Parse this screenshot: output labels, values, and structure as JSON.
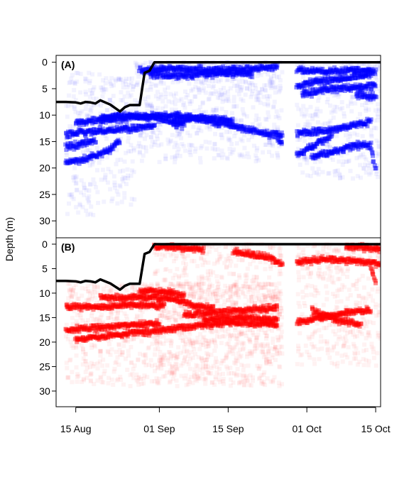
{
  "chart_data": {
    "type": "scatter",
    "ylabel": "Depth (m)",
    "x_axis": {
      "type": "date",
      "range": [
        "2013-08-11",
        "2013-10-16"
      ],
      "ticks": [
        {
          "date": "2013-08-15",
          "label": "15 Aug"
        },
        {
          "date": "2013-09-01",
          "label": "01 Sep"
        },
        {
          "date": "2013-09-15",
          "label": "15 Sep"
        },
        {
          "date": "2013-10-01",
          "label": "01 Oct"
        },
        {
          "date": "2013-10-15",
          "label": "15 Oct"
        }
      ]
    },
    "panels": [
      {
        "label": "(A)",
        "color": "#0000ff",
        "y_axis": {
          "range": [
            -1.3,
            33.2
          ],
          "inverted": true,
          "ticks": [
            0,
            5,
            10,
            15,
            20,
            25,
            30
          ]
        },
        "depth_line": {
          "color": "#000000",
          "points": [
            [
              "2013-08-11",
              7.5
            ],
            [
              "2013-08-13",
              7.5
            ],
            [
              "2013-08-15",
              7.6
            ],
            [
              "2013-08-16",
              7.8
            ],
            [
              "2013-08-17",
              7.5
            ],
            [
              "2013-08-18",
              7.6
            ],
            [
              "2013-08-19",
              7.8
            ],
            [
              "2013-08-20",
              7.2
            ],
            [
              "2013-08-22",
              8.0
            ],
            [
              "2013-08-24",
              9.3
            ],
            [
              "2013-08-25",
              8.5
            ],
            [
              "2013-08-26",
              8.1
            ],
            [
              "2013-08-28",
              8.1
            ],
            [
              "2013-08-29",
              2.0
            ],
            [
              "2013-08-30",
              1.6
            ],
            [
              "2013-08-31",
              0.0
            ],
            [
              "2013-10-16",
              0.0
            ]
          ]
        },
        "tracks": [
          {
            "points": [
              [
                "2013-08-13",
                13.5
              ],
              [
                "2013-08-20",
                13.0
              ],
              [
                "2013-08-27",
                12.5
              ],
              [
                "2013-08-31",
                12.0
              ]
            ]
          },
          {
            "points": [
              [
                "2013-08-15",
                11.5
              ],
              [
                "2013-08-22",
                10.8
              ],
              [
                "2013-08-29",
                10.2
              ],
              [
                "2013-09-05",
                10.0
              ],
              [
                "2013-09-12",
                11.2
              ],
              [
                "2013-09-18",
                12.5
              ],
              [
                "2013-09-23",
                13.5
              ],
              [
                "2013-09-26",
                14.0
              ]
            ]
          },
          {
            "points": [
              [
                "2013-08-13",
                19.0
              ],
              [
                "2013-08-18",
                18.0
              ],
              [
                "2013-08-22",
                16.5
              ],
              [
                "2013-08-24",
                15.0
              ]
            ]
          },
          {
            "points": [
              [
                "2013-08-13",
                16.0
              ],
              [
                "2013-08-16",
                15.5
              ],
              [
                "2013-08-19",
                14.8
              ]
            ]
          },
          {
            "points": [
              [
                "2013-08-20",
                10.5
              ],
              [
                "2013-08-26",
                10.2
              ],
              [
                "2013-09-01",
                10.5
              ],
              [
                "2013-09-04",
                11.5
              ],
              [
                "2013-09-06",
                12.0
              ]
            ]
          },
          {
            "points": [
              [
                "2013-09-04",
                11.0
              ],
              [
                "2013-09-10",
                10.5
              ],
              [
                "2013-09-16",
                11.0
              ]
            ]
          },
          {
            "points": [
              [
                "2013-08-28",
                1.5
              ],
              [
                "2013-09-04",
                1.2
              ],
              [
                "2013-09-12",
                1.5
              ],
              [
                "2013-09-20",
                1.2
              ],
              [
                "2013-09-25",
                1.0
              ]
            ]
          },
          {
            "points": [
              [
                "2013-08-30",
                2.3
              ],
              [
                "2013-09-06",
                2.5
              ],
              [
                "2013-09-14",
                2.0
              ],
              [
                "2013-09-20",
                2.2
              ]
            ]
          },
          {
            "points": [
              [
                "2013-09-25",
                14.0
              ],
              [
                "2013-09-26",
                15.5
              ]
            ]
          },
          {
            "points": [
              [
                "2013-09-29",
                1.5
              ],
              [
                "2013-10-05",
                1.8
              ],
              [
                "2013-10-11",
                1.5
              ],
              [
                "2013-10-15",
                1.8
              ]
            ]
          },
          {
            "points": [
              [
                "2013-09-29",
                4.5
              ],
              [
                "2013-10-03",
                3.5
              ],
              [
                "2013-10-08",
                3.2
              ],
              [
                "2013-10-14",
                2.2
              ]
            ]
          },
          {
            "points": [
              [
                "2013-09-30",
                6.0
              ],
              [
                "2013-10-05",
                5.2
              ],
              [
                "2013-10-10",
                4.8
              ],
              [
                "2013-10-15",
                4.5
              ]
            ]
          },
          {
            "points": [
              [
                "2013-10-11",
                6.0
              ],
              [
                "2013-10-15",
                6.5
              ]
            ]
          },
          {
            "points": [
              [
                "2013-09-29",
                13.5
              ],
              [
                "2013-10-03",
                13.2
              ],
              [
                "2013-10-08",
                12.5
              ],
              [
                "2013-10-14",
                11.2
              ]
            ]
          },
          {
            "points": [
              [
                "2013-09-29",
                17.5
              ],
              [
                "2013-10-02",
                16.0
              ],
              [
                "2013-10-06",
                14.0
              ]
            ]
          },
          {
            "points": [
              [
                "2013-10-02",
                18.0
              ],
              [
                "2013-10-06",
                17.0
              ],
              [
                "2013-10-10",
                16.0
              ],
              [
                "2013-10-14",
                15.5
              ]
            ]
          },
          {
            "points": [
              [
                "2013-10-14",
                16.0
              ],
              [
                "2013-10-15",
                20.5
              ]
            ]
          }
        ],
        "clouds": [
          {
            "x": [
              "2013-08-13",
              "2013-08-20"
            ],
            "y": [
              2,
              29
            ]
          },
          {
            "x": [
              "2013-08-20",
              "2013-08-27"
            ],
            "y": [
              3,
              27
            ]
          },
          {
            "x": [
              "2013-08-27",
              "2013-09-26"
            ],
            "y": [
              0,
              19
            ]
          },
          {
            "x": [
              "2013-09-29",
              "2013-10-16"
            ],
            "y": [
              0,
              22
            ]
          }
        ]
      },
      {
        "label": "(B)",
        "color": "#ff0000",
        "y_axis": {
          "range": [
            -1.3,
            33.2
          ],
          "inverted": true,
          "ticks": [
            0,
            5,
            10,
            15,
            20,
            25,
            30
          ]
        },
        "depth_line": {
          "color": "#000000",
          "points": [
            [
              "2013-08-11",
              7.5
            ],
            [
              "2013-08-13",
              7.5
            ],
            [
              "2013-08-15",
              7.6
            ],
            [
              "2013-08-16",
              7.8
            ],
            [
              "2013-08-17",
              7.5
            ],
            [
              "2013-08-18",
              7.6
            ],
            [
              "2013-08-19",
              7.8
            ],
            [
              "2013-08-20",
              7.2
            ],
            [
              "2013-08-22",
              8.0
            ],
            [
              "2013-08-24",
              9.3
            ],
            [
              "2013-08-25",
              8.5
            ],
            [
              "2013-08-26",
              8.1
            ],
            [
              "2013-08-28",
              8.1
            ],
            [
              "2013-08-29",
              2.0
            ],
            [
              "2013-08-30",
              1.6
            ],
            [
              "2013-08-31",
              0.0
            ],
            [
              "2013-10-16",
              0.0
            ]
          ]
        },
        "tracks": [
          {
            "points": [
              [
                "2013-08-13",
                12.8
              ],
              [
                "2013-08-20",
                12.8
              ],
              [
                "2013-08-27",
                12.5
              ],
              [
                "2013-09-02",
                12.5
              ]
            ]
          },
          {
            "points": [
              [
                "2013-08-13",
                17.5
              ],
              [
                "2013-08-20",
                17.0
              ],
              [
                "2013-08-27",
                16.5
              ],
              [
                "2013-09-01",
                16.2
              ]
            ]
          },
          {
            "points": [
              [
                "2013-08-15",
                19.5
              ],
              [
                "2013-08-24",
                18.5
              ],
              [
                "2013-09-02",
                17.5
              ],
              [
                "2013-09-10",
                16.5
              ],
              [
                "2013-09-17",
                16.0
              ],
              [
                "2013-09-25",
                16.5
              ]
            ]
          },
          {
            "points": [
              [
                "2013-08-20",
                11.0
              ],
              [
                "2013-08-27",
                10.8
              ],
              [
                "2013-09-03",
                11.0
              ],
              [
                "2013-09-08",
                12.5
              ],
              [
                "2013-09-12",
                13.0
              ]
            ]
          },
          {
            "points": [
              [
                "2013-08-28",
                9.5
              ],
              [
                "2013-09-03",
                9.8
              ],
              [
                "2013-09-06",
                10.5
              ]
            ]
          },
          {
            "points": [
              [
                "2013-09-06",
                14.5
              ],
              [
                "2013-09-12",
                14.0
              ],
              [
                "2013-09-18",
                13.5
              ],
              [
                "2013-09-25",
                13.0
              ]
            ]
          },
          {
            "points": [
              [
                "2013-09-10",
                15.5
              ],
              [
                "2013-09-17",
                15.0
              ],
              [
                "2013-09-25",
                15.5
              ]
            ]
          },
          {
            "points": [
              [
                "2013-08-31",
                0.5
              ],
              [
                "2013-09-05",
                0.8
              ],
              [
                "2013-09-10",
                1.0
              ]
            ]
          },
          {
            "points": [
              [
                "2013-09-16",
                1.5
              ],
              [
                "2013-09-20",
                2.0
              ],
              [
                "2013-09-24",
                3.0
              ],
              [
                "2013-09-26",
                4.0
              ]
            ]
          },
          {
            "points": [
              [
                "2013-09-29",
                3.5
              ],
              [
                "2013-10-05",
                3.2
              ],
              [
                "2013-10-11",
                3.5
              ],
              [
                "2013-10-16",
                4.0
              ]
            ]
          },
          {
            "points": [
              [
                "2013-10-09",
                0.5
              ],
              [
                "2013-10-13",
                0.8
              ],
              [
                "2013-10-16",
                1.0
              ]
            ]
          },
          {
            "points": [
              [
                "2013-10-14",
                4.5
              ],
              [
                "2013-10-15",
                8.0
              ]
            ]
          },
          {
            "points": [
              [
                "2013-09-29",
                16.0
              ],
              [
                "2013-10-04",
                15.0
              ],
              [
                "2013-10-09",
                14.0
              ],
              [
                "2013-10-14",
                13.5
              ]
            ]
          },
          {
            "points": [
              [
                "2013-10-02",
                13.5
              ],
              [
                "2013-10-07",
                15.5
              ],
              [
                "2013-10-12",
                16.5
              ]
            ]
          }
        ],
        "clouds": [
          {
            "x": [
              "2013-08-13",
              "2013-09-26"
            ],
            "y": [
              8,
              29
            ]
          },
          {
            "x": [
              "2013-08-31",
              "2013-09-26"
            ],
            "y": [
              0,
              29
            ]
          },
          {
            "x": [
              "2013-09-29",
              "2013-10-16"
            ],
            "y": [
              0,
              25
            ]
          }
        ]
      }
    ]
  }
}
